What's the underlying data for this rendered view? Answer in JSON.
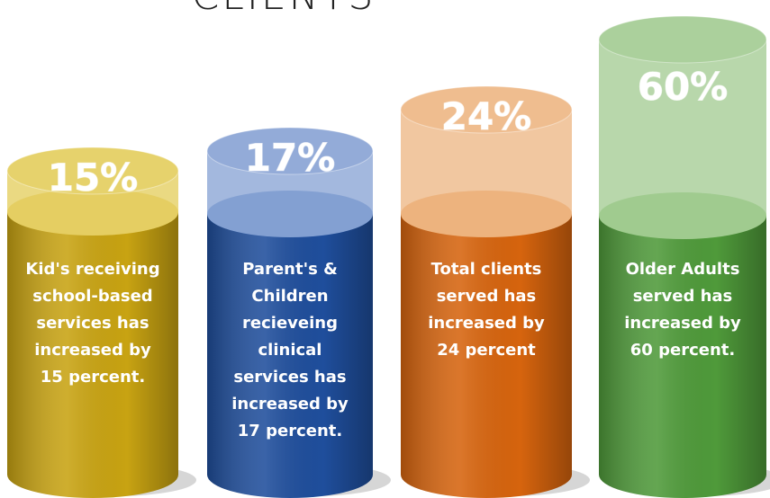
{
  "title": "CLIENTS",
  "items": [
    {
      "value_label": "15%",
      "description": [
        "Kid's receiving",
        "school-based",
        "services has",
        "increased by",
        "15 percent."
      ]
    },
    {
      "value_label": "17%",
      "description": [
        "Parent's &",
        "Children",
        "recieveing",
        "clinical",
        "services has",
        "increased by",
        "17 percent."
      ]
    },
    {
      "value_label": "24%",
      "description": [
        "Total clients",
        "served has",
        "increased by",
        "24 percent"
      ]
    },
    {
      "value_label": "60%",
      "description": [
        "Older Adults",
        "served has",
        "increased by",
        "60 percent."
      ]
    }
  ]
}
